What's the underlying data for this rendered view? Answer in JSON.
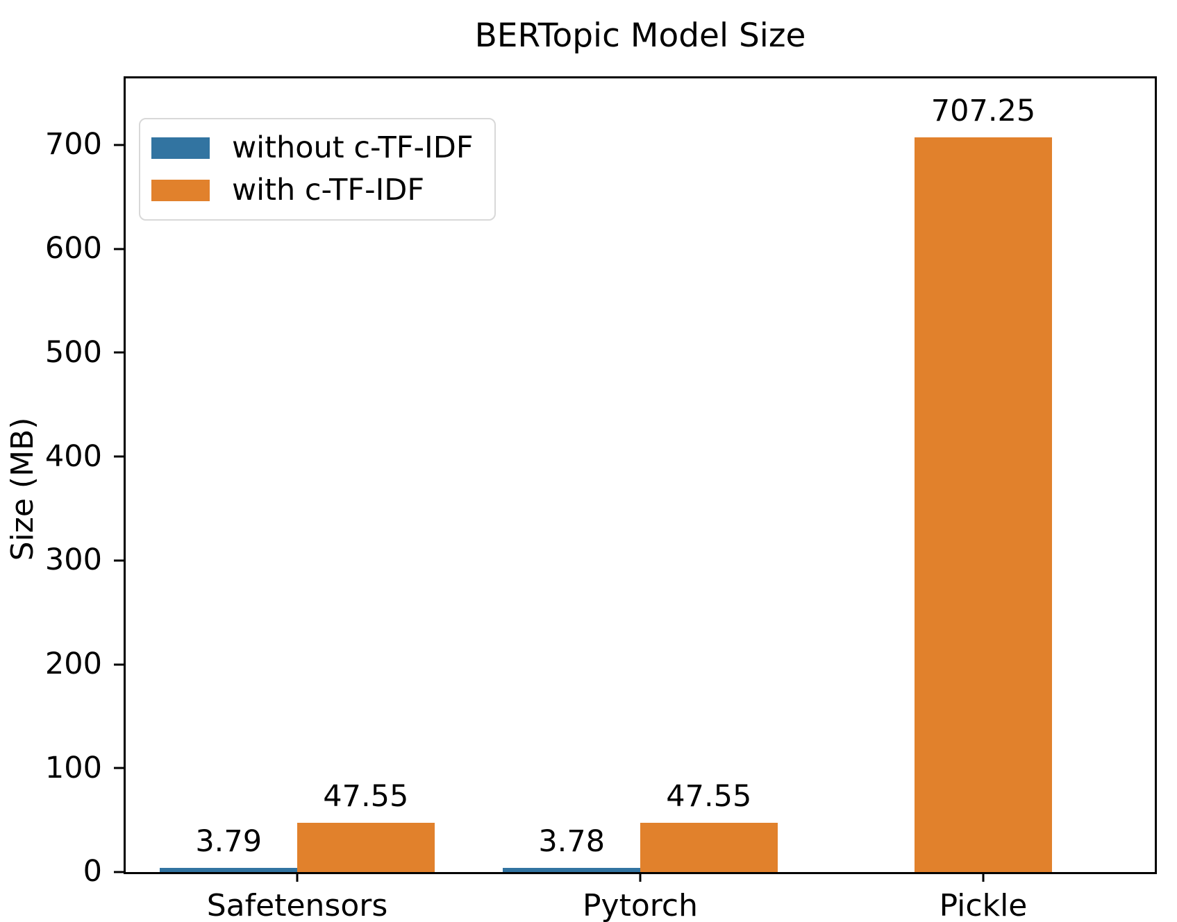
{
  "title": "BERTopic Model Size",
  "ylabel": "Size (MB)",
  "legend": {
    "items": [
      {
        "label": "without c-TF-IDF",
        "color": "#3274a1"
      },
      {
        "label": "with c-TF-IDF",
        "color": "#e1812c"
      }
    ]
  },
  "chart_data": {
    "type": "bar",
    "title": "BERTopic Model Size",
    "xlabel": "",
    "ylabel": "Size (MB)",
    "categories": [
      "Safetensors",
      "Pytorch",
      "Pickle"
    ],
    "series": [
      {
        "name": "without c-TF-IDF",
        "color": "#3274a1",
        "values": [
          3.79,
          3.78,
          null
        ],
        "value_labels": [
          "3.79",
          "3.78",
          null
        ]
      },
      {
        "name": "with c-TF-IDF",
        "color": "#e1812c",
        "values": [
          47.55,
          47.55,
          707.25
        ],
        "value_labels": [
          "47.55",
          "47.55",
          "707.25"
        ]
      }
    ],
    "ylim": [
      0,
      764
    ],
    "yticks": [
      0,
      100,
      200,
      300,
      400,
      500,
      600,
      700
    ],
    "grid": false,
    "legend_position": "upper left",
    "bar_value_labels": true,
    "bar_group_width_fraction": 0.8
  }
}
